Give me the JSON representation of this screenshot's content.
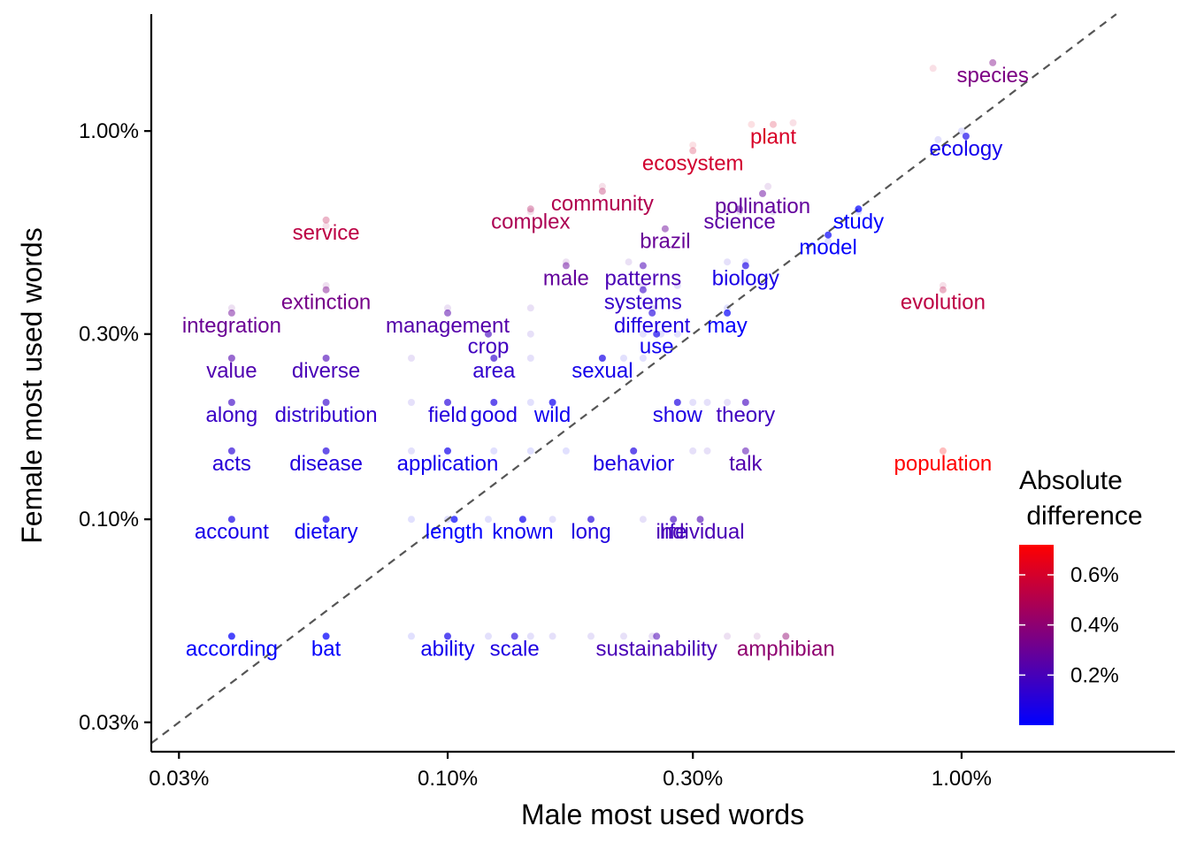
{
  "chart_data": {
    "type": "scatter",
    "xlabel": "Male most used words",
    "ylabel": "Female most used words",
    "x_scale": "log10",
    "y_scale": "log10",
    "x_ticks": [
      {
        "value": 0.03,
        "label": "0.03%"
      },
      {
        "value": 0.1,
        "label": "0.10%"
      },
      {
        "value": 0.3,
        "label": "0.30%"
      },
      {
        "value": 1.0,
        "label": "1.00%"
      }
    ],
    "y_ticks": [
      {
        "value": 0.03,
        "label": "0.03%"
      },
      {
        "value": 0.1,
        "label": "0.10%"
      },
      {
        "value": 0.3,
        "label": "0.30%"
      },
      {
        "value": 1.0,
        "label": "1.00%"
      }
    ],
    "xlim": [
      0.0265,
      2.6
    ],
    "ylim": [
      0.0252,
      2.0
    ],
    "reference_line": "y = x (dashed)",
    "grid": false,
    "color_scale": {
      "title_line1": "Absolute",
      "title_line2": " difference",
      "low_color": "#0000ff",
      "high_color": "#ff0000",
      "domain": [
        0.0,
        0.72
      ],
      "ticks": [
        {
          "value": 0.2,
          "label": "0.2%"
        },
        {
          "value": 0.4,
          "label": "0.4%"
        },
        {
          "value": 0.6,
          "label": "0.6%"
        }
      ]
    },
    "points": [
      {
        "word": "species",
        "male": 1.15,
        "female": 1.5
      },
      {
        "word": "plant",
        "male": 0.43,
        "female": 1.04
      },
      {
        "word": "ecology",
        "male": 1.02,
        "female": 0.97
      },
      {
        "word": "ecosystem",
        "male": 0.3,
        "female": 0.89
      },
      {
        "word": "community",
        "male": 0.2,
        "female": 0.7
      },
      {
        "word": "pollination",
        "male": 0.41,
        "female": 0.69
      },
      {
        "word": "complex",
        "male": 0.145,
        "female": 0.63
      },
      {
        "word": "science",
        "male": 0.37,
        "female": 0.63
      },
      {
        "word": "study",
        "male": 0.63,
        "female": 0.63
      },
      {
        "word": "service",
        "male": 0.058,
        "female": 0.59
      },
      {
        "word": "brazil",
        "male": 0.265,
        "female": 0.56
      },
      {
        "word": "model",
        "male": 0.55,
        "female": 0.54
      },
      {
        "word": "male",
        "male": 0.17,
        "female": 0.45
      },
      {
        "word": "patterns",
        "male": 0.24,
        "female": 0.45
      },
      {
        "word": "biology",
        "male": 0.38,
        "female": 0.45
      },
      {
        "word": "extinction",
        "male": 0.058,
        "female": 0.39
      },
      {
        "word": "systems",
        "male": 0.24,
        "female": 0.39
      },
      {
        "word": "evolution",
        "male": 0.92,
        "female": 0.39
      },
      {
        "word": "integration",
        "male": 0.038,
        "female": 0.34
      },
      {
        "word": "management",
        "male": 0.1,
        "female": 0.34
      },
      {
        "word": "different",
        "male": 0.25,
        "female": 0.34
      },
      {
        "word": "may",
        "male": 0.35,
        "female": 0.34
      },
      {
        "word": "crop",
        "male": 0.12,
        "female": 0.3
      },
      {
        "word": "use",
        "male": 0.255,
        "female": 0.3
      },
      {
        "word": "value",
        "male": 0.038,
        "female": 0.26
      },
      {
        "word": "diverse",
        "male": 0.058,
        "female": 0.26
      },
      {
        "word": "area",
        "male": 0.123,
        "female": 0.26
      },
      {
        "word": "sexual",
        "male": 0.2,
        "female": 0.26
      },
      {
        "word": "along",
        "male": 0.038,
        "female": 0.2
      },
      {
        "word": "distribution",
        "male": 0.058,
        "female": 0.2
      },
      {
        "word": "field",
        "male": 0.1,
        "female": 0.2
      },
      {
        "word": "good",
        "male": 0.123,
        "female": 0.2
      },
      {
        "word": "wild",
        "male": 0.16,
        "female": 0.2
      },
      {
        "word": "show",
        "male": 0.28,
        "female": 0.2
      },
      {
        "word": "theory",
        "male": 0.38,
        "female": 0.2
      },
      {
        "word": "acts",
        "male": 0.038,
        "female": 0.15
      },
      {
        "word": "disease",
        "male": 0.058,
        "female": 0.15
      },
      {
        "word": "application",
        "male": 0.1,
        "female": 0.15
      },
      {
        "word": "behavior",
        "male": 0.23,
        "female": 0.15
      },
      {
        "word": "talk",
        "male": 0.38,
        "female": 0.15
      },
      {
        "word": "population",
        "male": 0.92,
        "female": 0.15
      },
      {
        "word": "account",
        "male": 0.038,
        "female": 0.1
      },
      {
        "word": "dietary",
        "male": 0.058,
        "female": 0.1
      },
      {
        "word": "length",
        "male": 0.103,
        "female": 0.1
      },
      {
        "word": "known",
        "male": 0.14,
        "female": 0.1
      },
      {
        "word": "long",
        "male": 0.19,
        "female": 0.1
      },
      {
        "word": "life",
        "male": 0.275,
        "female": 0.1
      },
      {
        "word": "individual",
        "male": 0.31,
        "female": 0.1
      },
      {
        "word": "according",
        "male": 0.038,
        "female": 0.05
      },
      {
        "word": "bat",
        "male": 0.058,
        "female": 0.05
      },
      {
        "word": "ability",
        "male": 0.1,
        "female": 0.05
      },
      {
        "word": "scale",
        "male": 0.135,
        "female": 0.05
      },
      {
        "word": "sustainability",
        "male": 0.255,
        "female": 0.05
      },
      {
        "word": "amphibian",
        "male": 0.455,
        "female": 0.05
      }
    ],
    "background_points": [
      {
        "male": 0.88,
        "female": 1.45
      },
      {
        "male": 1.0,
        "female": 1.0
      },
      {
        "male": 0.47,
        "female": 1.05
      },
      {
        "male": 0.39,
        "female": 1.04
      },
      {
        "male": 0.9,
        "female": 0.95
      },
      {
        "male": 0.3,
        "female": 0.92
      },
      {
        "male": 0.2,
        "female": 0.72
      },
      {
        "male": 0.42,
        "female": 0.72
      },
      {
        "male": 0.145,
        "female": 0.62
      },
      {
        "male": 0.35,
        "female": 0.62
      },
      {
        "male": 0.37,
        "female": 0.62
      },
      {
        "male": 0.43,
        "female": 0.62
      },
      {
        "male": 0.63,
        "female": 0.62
      },
      {
        "male": 0.058,
        "female": 0.57
      },
      {
        "male": 0.55,
        "female": 0.52
      },
      {
        "male": 0.17,
        "female": 0.46
      },
      {
        "male": 0.225,
        "female": 0.46
      },
      {
        "male": 0.35,
        "female": 0.46
      },
      {
        "male": 0.38,
        "female": 0.46
      },
      {
        "male": 0.058,
        "female": 0.4
      },
      {
        "male": 0.24,
        "female": 0.4
      },
      {
        "male": 0.28,
        "female": 0.4
      },
      {
        "male": 0.92,
        "female": 0.4
      },
      {
        "male": 0.038,
        "female": 0.35
      },
      {
        "male": 0.1,
        "female": 0.35
      },
      {
        "male": 0.145,
        "female": 0.35
      },
      {
        "male": 0.25,
        "female": 0.35
      },
      {
        "male": 0.35,
        "female": 0.35
      },
      {
        "male": 0.12,
        "female": 0.3
      },
      {
        "male": 0.145,
        "female": 0.3
      },
      {
        "male": 0.24,
        "female": 0.3
      },
      {
        "male": 0.26,
        "female": 0.3
      },
      {
        "male": 0.28,
        "female": 0.3
      },
      {
        "male": 0.038,
        "female": 0.26
      },
      {
        "male": 0.058,
        "female": 0.26
      },
      {
        "male": 0.085,
        "female": 0.26
      },
      {
        "male": 0.123,
        "female": 0.26
      },
      {
        "male": 0.145,
        "female": 0.26
      },
      {
        "male": 0.2,
        "female": 0.26
      },
      {
        "male": 0.22,
        "female": 0.26
      },
      {
        "male": 0.24,
        "female": 0.26
      },
      {
        "male": 0.038,
        "female": 0.2
      },
      {
        "male": 0.058,
        "female": 0.2
      },
      {
        "male": 0.085,
        "female": 0.2
      },
      {
        "male": 0.1,
        "female": 0.2
      },
      {
        "male": 0.123,
        "female": 0.2
      },
      {
        "male": 0.145,
        "female": 0.2
      },
      {
        "male": 0.16,
        "female": 0.2
      },
      {
        "male": 0.28,
        "female": 0.2
      },
      {
        "male": 0.3,
        "female": 0.2
      },
      {
        "male": 0.32,
        "female": 0.2
      },
      {
        "male": 0.35,
        "female": 0.2
      },
      {
        "male": 0.38,
        "female": 0.2
      },
      {
        "male": 0.038,
        "female": 0.15
      },
      {
        "male": 0.058,
        "female": 0.15
      },
      {
        "male": 0.085,
        "female": 0.15
      },
      {
        "male": 0.1,
        "female": 0.15
      },
      {
        "male": 0.123,
        "female": 0.15
      },
      {
        "male": 0.145,
        "female": 0.15
      },
      {
        "male": 0.17,
        "female": 0.15
      },
      {
        "male": 0.23,
        "female": 0.15
      },
      {
        "male": 0.3,
        "female": 0.15
      },
      {
        "male": 0.32,
        "female": 0.15
      },
      {
        "male": 0.92,
        "female": 0.15
      },
      {
        "male": 0.038,
        "female": 0.1
      },
      {
        "male": 0.058,
        "female": 0.1
      },
      {
        "male": 0.085,
        "female": 0.1
      },
      {
        "male": 0.1,
        "female": 0.1
      },
      {
        "male": 0.12,
        "female": 0.1
      },
      {
        "male": 0.14,
        "female": 0.1
      },
      {
        "male": 0.16,
        "female": 0.1
      },
      {
        "male": 0.19,
        "female": 0.1
      },
      {
        "male": 0.24,
        "female": 0.1
      },
      {
        "male": 0.275,
        "female": 0.1
      },
      {
        "male": 0.31,
        "female": 0.1
      },
      {
        "male": 0.038,
        "female": 0.05
      },
      {
        "male": 0.058,
        "female": 0.05
      },
      {
        "male": 0.085,
        "female": 0.05
      },
      {
        "male": 0.1,
        "female": 0.05
      },
      {
        "male": 0.12,
        "female": 0.05
      },
      {
        "male": 0.145,
        "female": 0.05
      },
      {
        "male": 0.16,
        "female": 0.05
      },
      {
        "male": 0.19,
        "female": 0.05
      },
      {
        "male": 0.22,
        "female": 0.05
      },
      {
        "male": 0.25,
        "female": 0.05
      },
      {
        "male": 0.35,
        "female": 0.05
      },
      {
        "male": 0.4,
        "female": 0.05
      },
      {
        "male": 0.455,
        "female": 0.05
      }
    ]
  }
}
